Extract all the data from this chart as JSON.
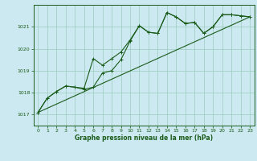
{
  "title": "Graphe pression niveau de la mer (hPa)",
  "background_color": "#cce8f0",
  "grid_color": "#99ccbb",
  "line_color": "#1a5c1a",
  "xlim": [
    -0.5,
    23.5
  ],
  "ylim": [
    1016.5,
    1022.0
  ],
  "yticks": [
    1017,
    1018,
    1019,
    1020,
    1021
  ],
  "xticks": [
    0,
    1,
    2,
    3,
    4,
    5,
    6,
    7,
    8,
    9,
    10,
    11,
    12,
    13,
    14,
    15,
    16,
    17,
    18,
    19,
    20,
    21,
    22,
    23
  ],
  "series1_x": [
    0,
    1,
    2,
    3,
    4,
    5,
    6,
    7,
    8,
    9,
    10,
    11,
    12,
    13,
    14,
    15,
    16,
    17,
    18,
    19,
    20,
    21,
    22,
    23
  ],
  "series1_y": [
    1017.1,
    1017.75,
    1018.05,
    1018.3,
    1018.25,
    1018.2,
    1019.55,
    1019.25,
    1019.55,
    1019.85,
    1020.4,
    1021.05,
    1020.75,
    1020.7,
    1021.65,
    1021.45,
    1021.15,
    1021.2,
    1020.7,
    1021.0,
    1021.55,
    1021.55,
    1021.5,
    1021.45
  ],
  "series2_x": [
    0,
    1,
    2,
    3,
    4,
    5,
    6,
    7,
    8,
    9,
    10,
    11,
    12,
    13,
    14,
    15,
    16,
    17,
    18,
    19,
    20,
    21,
    22,
    23
  ],
  "series2_y": [
    1017.1,
    1017.75,
    1018.05,
    1018.3,
    1018.25,
    1018.15,
    1018.25,
    1018.9,
    1019.0,
    1019.5,
    1020.35,
    1021.05,
    1020.75,
    1020.7,
    1021.65,
    1021.45,
    1021.15,
    1021.2,
    1020.7,
    1021.0,
    1021.55,
    1021.55,
    1021.5,
    1021.45
  ],
  "series3_x": [
    0,
    23
  ],
  "series3_y": [
    1017.1,
    1021.45
  ]
}
